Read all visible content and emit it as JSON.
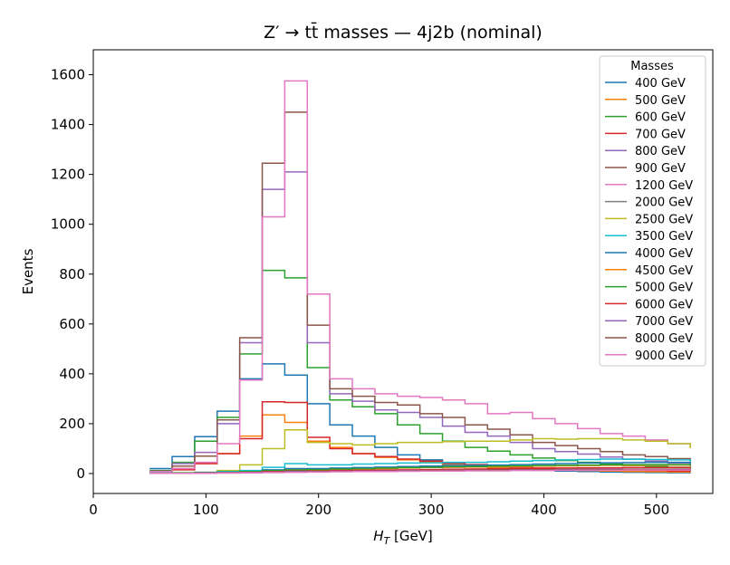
{
  "chart_data": {
    "type": "line",
    "drawstyle": "steps",
    "title": "Z′ → tt̄ masses — 4j2b (nominal)",
    "xlabel": "H_T [GeV]",
    "ylabel": "Events",
    "xlim": [
      0,
      550
    ],
    "ylim": [
      -80,
      1700
    ],
    "xticks": [
      0,
      100,
      200,
      300,
      400,
      500
    ],
    "yticks": [
      0,
      200,
      400,
      600,
      800,
      1000,
      1200,
      1400,
      1600
    ],
    "legend_title": "Masses",
    "legend_loc": "upper right",
    "bin_edges": [
      50,
      70,
      90,
      110,
      130,
      150,
      170,
      190,
      210,
      230,
      250,
      270,
      290,
      310,
      330,
      350,
      370,
      390,
      410,
      430,
      450,
      470,
      490,
      510,
      530
    ],
    "series": [
      {
        "name": "400 GeV",
        "color": "#1f77b4",
        "values": [
          20,
          68,
          148,
          250,
          380,
          440,
          395,
          280,
          195,
          150,
          105,
          75,
          55,
          40,
          30,
          22,
          17,
          13,
          10,
          8,
          6,
          5,
          4,
          3
        ]
      },
      {
        "name": "500 GeV",
        "color": "#ff7f0e",
        "values": [
          5,
          20,
          40,
          80,
          150,
          235,
          205,
          130,
          105,
          80,
          65,
          55,
          45,
          35,
          30,
          25,
          20,
          18,
          15,
          12,
          10,
          8,
          7,
          6
        ]
      },
      {
        "name": "600 GeV",
        "color": "#2ca02c",
        "values": [
          12,
          45,
          130,
          225,
          480,
          815,
          785,
          425,
          295,
          268,
          240,
          195,
          160,
          130,
          105,
          90,
          75,
          62,
          52,
          45,
          38,
          32,
          28,
          25
        ]
      },
      {
        "name": "700 GeV",
        "color": "#d62728",
        "values": [
          3,
          15,
          40,
          80,
          140,
          288,
          285,
          145,
          100,
          80,
          68,
          58,
          50,
          42,
          36,
          30,
          26,
          22,
          20,
          18,
          16,
          14,
          12,
          10
        ]
      },
      {
        "name": "800 GeV",
        "color": "#9467bd",
        "values": [
          10,
          40,
          85,
          200,
          525,
          1140,
          1210,
          525,
          320,
          290,
          255,
          245,
          225,
          190,
          165,
          150,
          125,
          100,
          88,
          78,
          66,
          58,
          50,
          42
        ]
      },
      {
        "name": "900 GeV",
        "color": "#8c564b",
        "values": [
          10,
          30,
          70,
          215,
          545,
          1245,
          1450,
          595,
          340,
          310,
          285,
          275,
          240,
          225,
          195,
          178,
          155,
          125,
          112,
          100,
          88,
          75,
          68,
          60
        ]
      },
      {
        "name": "1200 GeV",
        "color": "#e377c2",
        "values": [
          8,
          20,
          45,
          120,
          375,
          1030,
          1575,
          720,
          380,
          340,
          320,
          310,
          305,
          295,
          280,
          240,
          245,
          220,
          200,
          180,
          160,
          150,
          135,
          120
        ]
      },
      {
        "name": "2000 GeV",
        "color": "#7f7f7f",
        "values": [
          1,
          2,
          3,
          4,
          5,
          6,
          7,
          8,
          9,
          10,
          11,
          12,
          13,
          14,
          15,
          15,
          16,
          16,
          17,
          17,
          17,
          16,
          16,
          15
        ]
      },
      {
        "name": "2500 GeV",
        "color": "#bcbd22",
        "values": [
          2,
          3,
          5,
          12,
          35,
          100,
          175,
          125,
          120,
          115,
          120,
          125,
          125,
          128,
          130,
          130,
          135,
          140,
          138,
          140,
          140,
          135,
          130,
          120
        ]
      },
      {
        "name": "3500 GeV",
        "color": "#17becf",
        "values": [
          2,
          3,
          5,
          8,
          12,
          25,
          40,
          35,
          35,
          38,
          40,
          42,
          43,
          45,
          45,
          47,
          50,
          52,
          55,
          56,
          58,
          57,
          56,
          55
        ]
      },
      {
        "name": "4000 GeV",
        "color": "#1f77b4",
        "values": [
          1,
          2,
          3,
          5,
          8,
          15,
          20,
          20,
          22,
          24,
          26,
          28,
          30,
          32,
          33,
          34,
          36,
          38,
          40,
          42,
          43,
          44,
          45,
          45
        ]
      },
      {
        "name": "4500 GeV",
        "color": "#ff7f0e",
        "values": [
          1,
          2,
          3,
          4,
          6,
          10,
          14,
          14,
          16,
          18,
          20,
          22,
          24,
          25,
          26,
          27,
          28,
          30,
          31,
          32,
          33,
          33,
          34,
          34
        ]
      },
      {
        "name": "5000 GeV",
        "color": "#2ca02c",
        "values": [
          1,
          2,
          3,
          5,
          8,
          12,
          15,
          16,
          18,
          20,
          22,
          24,
          25,
          27,
          28,
          30,
          31,
          32,
          33,
          34,
          35,
          36,
          36,
          36
        ]
      },
      {
        "name": "6000 GeV",
        "color": "#d62728",
        "values": [
          1,
          1,
          2,
          3,
          5,
          8,
          10,
          10,
          12,
          13,
          14,
          15,
          16,
          17,
          18,
          19,
          20,
          21,
          22,
          23,
          23,
          24,
          24,
          24
        ]
      },
      {
        "name": "7000 GeV",
        "color": "#9467bd",
        "values": [
          1,
          1,
          2,
          3,
          4,
          6,
          8,
          8,
          9,
          10,
          11,
          12,
          12,
          13,
          14,
          14,
          15,
          15,
          16,
          16,
          17,
          17,
          17,
          17
        ]
      },
      {
        "name": "8000 GeV",
        "color": "#8c564b",
        "values": [
          1,
          1,
          2,
          2,
          3,
          5,
          6,
          7,
          8,
          9,
          10,
          11,
          12,
          12,
          13,
          14,
          14,
          15,
          15,
          16,
          16,
          17,
          17,
          17
        ]
      },
      {
        "name": "9000 GeV",
        "color": "#e377c2",
        "values": [
          1,
          1,
          1,
          2,
          3,
          4,
          5,
          6,
          7,
          8,
          8,
          9,
          10,
          10,
          11,
          11,
          12,
          12,
          13,
          13,
          13,
          14,
          14,
          14
        ]
      }
    ]
  }
}
